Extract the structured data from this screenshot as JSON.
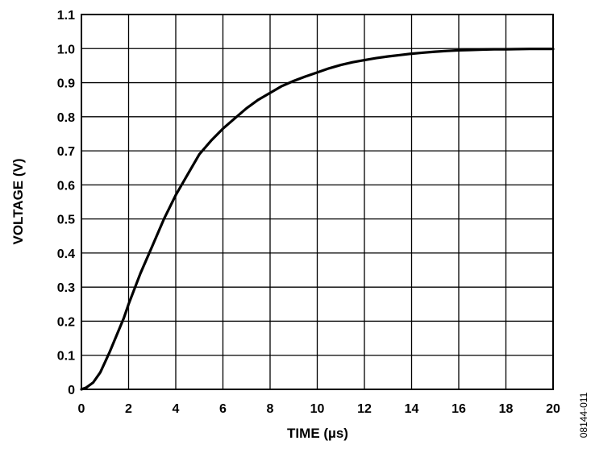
{
  "chart_data": {
    "type": "line",
    "title": "",
    "xlabel": "TIME (µs)",
    "ylabel": "VOLTAGE (V)",
    "xlim": [
      0,
      20
    ],
    "ylim": [
      0,
      1.1
    ],
    "x_ticks": [
      0,
      2,
      4,
      6,
      8,
      10,
      12,
      14,
      16,
      18,
      20
    ],
    "y_ticks": [
      0,
      0.1,
      0.2,
      0.3,
      0.4,
      0.5,
      0.6,
      0.7,
      0.8,
      0.9,
      1.0,
      1.1
    ],
    "y_tick_labels": [
      "0",
      "0.1",
      "0.2",
      "0.3",
      "0.4",
      "0.5",
      "0.6",
      "0.7",
      "0.8",
      "0.9",
      "1.0",
      "1.1"
    ],
    "grid": true,
    "line_color": "#000000",
    "series": [
      {
        "x": [
          0,
          0.2,
          0.5,
          0.8,
          1.0,
          1.2,
          1.5,
          1.8,
          2.0,
          2.5,
          3.0,
          3.5,
          4.0,
          4.5,
          5.0,
          5.5,
          6.0,
          6.5,
          7.0,
          7.5,
          8.0,
          8.5,
          9.0,
          9.5,
          10.0,
          10.5,
          11.0,
          11.5,
          12.0,
          12.5,
          13.0,
          13.5,
          14.0,
          14.5,
          15.0,
          15.5,
          16.0,
          16.5,
          17.0,
          17.5,
          18.0,
          19.0,
          20.0
        ],
        "y": [
          0,
          0.005,
          0.02,
          0.05,
          0.08,
          0.11,
          0.16,
          0.21,
          0.25,
          0.34,
          0.42,
          0.5,
          0.57,
          0.63,
          0.69,
          0.73,
          0.765,
          0.795,
          0.825,
          0.85,
          0.87,
          0.89,
          0.905,
          0.918,
          0.93,
          0.942,
          0.952,
          0.96,
          0.966,
          0.972,
          0.977,
          0.981,
          0.985,
          0.988,
          0.991,
          0.993,
          0.995,
          0.996,
          0.997,
          0.998,
          0.998,
          0.999,
          0.999
        ]
      }
    ]
  },
  "figure_id": "08144-011"
}
